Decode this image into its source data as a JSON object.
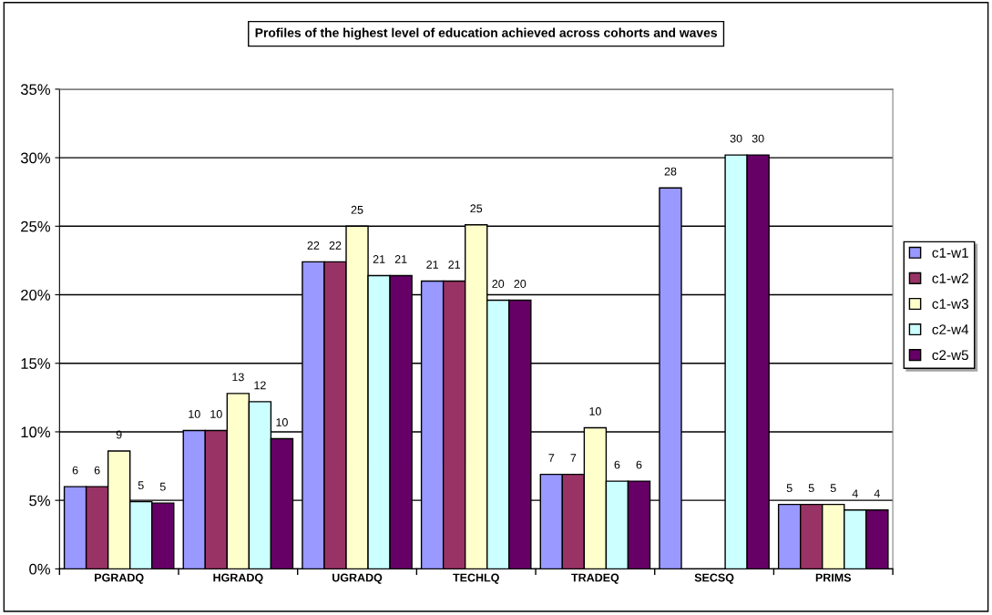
{
  "chart_data": {
    "type": "bar",
    "title": "Profiles of the highest level of education achieved across cohorts and waves",
    "categories": [
      "PGRADQ",
      "HGRADQ",
      "UGRADQ",
      "TECHLQ",
      "TRADEQ",
      "SECSQ",
      "PRIMS"
    ],
    "series": [
      {
        "name": "c1-w1",
        "color": "#9999ff",
        "values": [
          6.0,
          10.1,
          22.4,
          21.0,
          6.9,
          27.8,
          4.7
        ],
        "value_labels": [
          "6",
          "10",
          "22",
          "21",
          "7",
          "28",
          "5"
        ]
      },
      {
        "name": "c1-w2",
        "color": "#993366",
        "values": [
          6.0,
          10.1,
          22.4,
          21.0,
          6.9,
          null,
          4.7
        ],
        "value_labels": [
          "6",
          "10",
          "22",
          "21",
          "7",
          null,
          "5"
        ]
      },
      {
        "name": "c1-w3",
        "color": "#ffffcc",
        "values": [
          8.6,
          12.8,
          25.0,
          25.1,
          10.3,
          null,
          4.7
        ],
        "value_labels": [
          "9",
          "13",
          "25",
          "25",
          "10",
          null,
          "5"
        ]
      },
      {
        "name": "c2-w4",
        "color": "#ccffff",
        "values": [
          4.9,
          12.2,
          21.4,
          19.6,
          6.4,
          30.2,
          4.3
        ],
        "value_labels": [
          "5",
          "12",
          "21",
          "20",
          "6",
          "30",
          "4"
        ]
      },
      {
        "name": "c2-w5",
        "color": "#660066",
        "values": [
          4.8,
          9.5,
          21.4,
          19.6,
          6.4,
          30.2,
          4.3
        ],
        "value_labels": [
          "5",
          "10",
          "21",
          "20",
          "6",
          "30",
          "4"
        ]
      }
    ],
    "ylim": [
      0,
      35
    ],
    "yticks": [
      {
        "value": 0,
        "label": "0%"
      },
      {
        "value": 5,
        "label": "5%"
      },
      {
        "value": 10,
        "label": "10%"
      },
      {
        "value": 15,
        "label": "15%"
      },
      {
        "value": 20,
        "label": "20%"
      },
      {
        "value": 25,
        "label": "25%"
      },
      {
        "value": 30,
        "label": "30%"
      },
      {
        "value": 35,
        "label": "35%"
      }
    ],
    "grid": "y",
    "legend": "right"
  }
}
